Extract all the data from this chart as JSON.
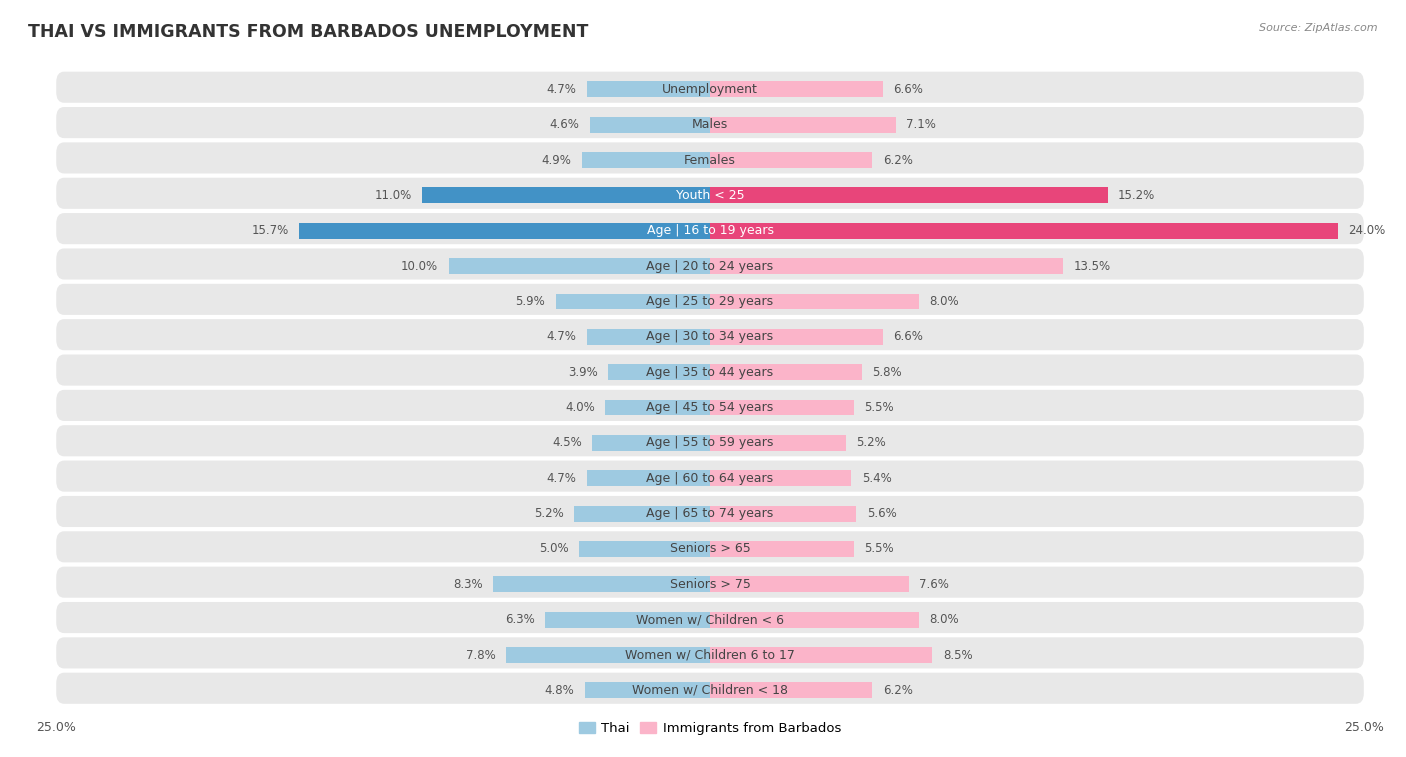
{
  "title": "THAI VS IMMIGRANTS FROM BARBADOS UNEMPLOYMENT",
  "source": "Source: ZipAtlas.com",
  "categories": [
    "Unemployment",
    "Males",
    "Females",
    "Youth < 25",
    "Age | 16 to 19 years",
    "Age | 20 to 24 years",
    "Age | 25 to 29 years",
    "Age | 30 to 34 years",
    "Age | 35 to 44 years",
    "Age | 45 to 54 years",
    "Age | 55 to 59 years",
    "Age | 60 to 64 years",
    "Age | 65 to 74 years",
    "Seniors > 65",
    "Seniors > 75",
    "Women w/ Children < 6",
    "Women w/ Children 6 to 17",
    "Women w/ Children < 18"
  ],
  "thai_values": [
    4.7,
    4.6,
    4.9,
    11.0,
    15.7,
    10.0,
    5.9,
    4.7,
    3.9,
    4.0,
    4.5,
    4.7,
    5.2,
    5.0,
    8.3,
    6.3,
    7.8,
    4.8
  ],
  "barbados_values": [
    6.6,
    7.1,
    6.2,
    15.2,
    24.0,
    13.5,
    8.0,
    6.6,
    5.8,
    5.5,
    5.2,
    5.4,
    5.6,
    5.5,
    7.6,
    8.0,
    8.5,
    6.2
  ],
  "thai_color_normal": "#9ecae1",
  "barbados_color_normal": "#fbb4c9",
  "thai_color_highlight": "#4292c6",
  "barbados_color_highlight": "#e8457a",
  "axis_limit": 25.0,
  "bar_height": 0.45,
  "bg_color": "#ffffff",
  "row_bg": "#e8e8e8",
  "row_gap_color": "#ffffff",
  "label_fontsize": 9.0,
  "title_fontsize": 12.5,
  "value_fontsize": 8.5,
  "legend_fontsize": 9.5,
  "highlight_rows": [
    3,
    4
  ],
  "white_label_rows": [
    3,
    4
  ]
}
